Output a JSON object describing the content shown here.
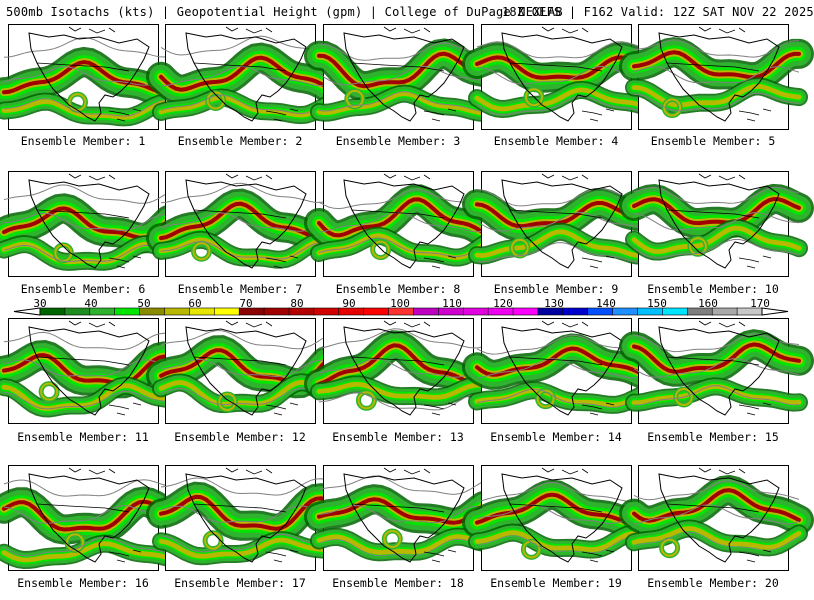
{
  "header": {
    "left": "500mb Isotachs (kts) | Geopotential Height (gpm) | College of DuPage NEXLAB",
    "right": "18Z GEFS | F162 Valid: 12Z SAT NOV 22 2025"
  },
  "members": [
    {
      "label": "Ensemble Member: 1"
    },
    {
      "label": "Ensemble Member: 2"
    },
    {
      "label": "Ensemble Member: 3"
    },
    {
      "label": "Ensemble Member: 4"
    },
    {
      "label": "Ensemble Member: 5"
    },
    {
      "label": "Ensemble Member: 6"
    },
    {
      "label": "Ensemble Member: 7"
    },
    {
      "label": "Ensemble Member: 8"
    },
    {
      "label": "Ensemble Member: 9"
    },
    {
      "label": "Ensemble Member: 10"
    },
    {
      "label": "Ensemble Member: 11"
    },
    {
      "label": "Ensemble Member: 12"
    },
    {
      "label": "Ensemble Member: 13"
    },
    {
      "label": "Ensemble Member: 14"
    },
    {
      "label": "Ensemble Member: 15"
    },
    {
      "label": "Ensemble Member: 16"
    },
    {
      "label": "Ensemble Member: 17"
    },
    {
      "label": "Ensemble Member: 18"
    },
    {
      "label": "Ensemble Member: 19"
    },
    {
      "label": "Ensemble Member: 20"
    }
  ],
  "colorbar": {
    "ticks": [
      "30",
      "40",
      "50",
      "60",
      "70",
      "80",
      "90",
      "100",
      "110",
      "120",
      "130",
      "140",
      "150",
      "160",
      "170"
    ],
    "colors": [
      "#006400",
      "#1e8c1e",
      "#2fb32f",
      "#00e600",
      "#8b8b00",
      "#b8b800",
      "#e6e600",
      "#ffff00",
      "#8b0000",
      "#a00000",
      "#b40000",
      "#d20000",
      "#e60000",
      "#ff0000",
      "#ff3232",
      "#c000c0",
      "#d000d0",
      "#e000e0",
      "#f000f0",
      "#ff00ff",
      "#0000a0",
      "#0000cd",
      "#0050ff",
      "#1e90ff",
      "#00bfff",
      "#00e5ff",
      "#7f7f7f",
      "#a9a9a9",
      "#c8c8c8"
    ]
  },
  "palette": {
    "jet_green": "#2fb32f",
    "jet_light": "#00e600",
    "jet_dark": "#006400",
    "jet_yellow": "#b8b800",
    "jet_core": "#a00000",
    "coast": "#000000",
    "height_contour": "#808080"
  }
}
